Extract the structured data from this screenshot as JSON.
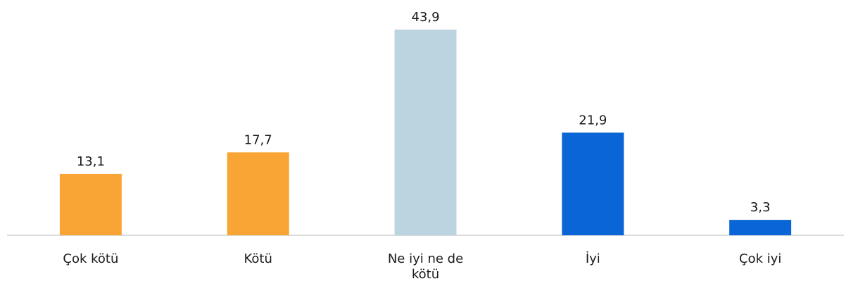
{
  "chart_data": {
    "type": "bar",
    "categories": [
      "Çok kötü",
      "Kötü",
      "Ne iyi ne de kötü",
      "İyi",
      "Çok iyi"
    ],
    "category_lines": [
      [
        "Çok kötü"
      ],
      [
        "Kötü"
      ],
      [
        "Ne iyi ne de",
        "kötü"
      ],
      [
        "İyi"
      ],
      [
        "Çok iyi"
      ]
    ],
    "values": [
      13.1,
      17.7,
      43.9,
      21.9,
      3.3
    ],
    "value_labels": [
      "13,1",
      "17,7",
      "43,9",
      "21,9",
      "3,3"
    ],
    "colors": [
      "#F9A535",
      "#F9A535",
      "#BCD3E0",
      "#0A66D6",
      "#0A66D6"
    ],
    "ylim": [
      0,
      43.9
    ],
    "grid": false,
    "legend": "none"
  }
}
